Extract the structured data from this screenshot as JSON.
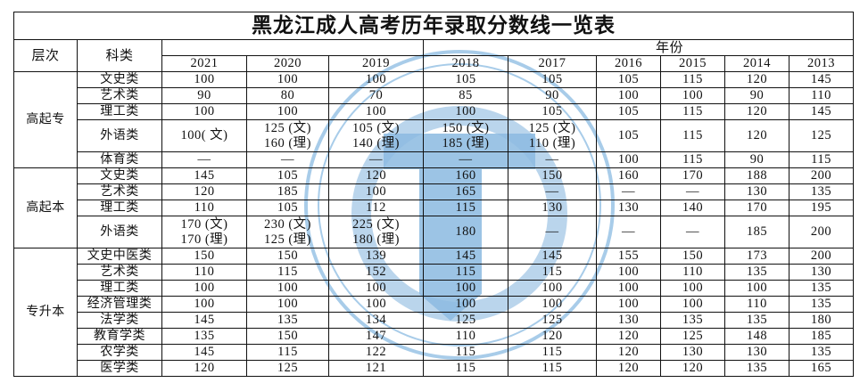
{
  "title": "黑龙江成人高考历年录取分数线一览表",
  "header": {
    "level": "层次",
    "category": "科类",
    "year_group": "年份",
    "years": [
      "2021",
      "2020",
      "2019",
      "2018",
      "2017",
      "2016",
      "2015",
      "2014",
      "2013"
    ]
  },
  "watermark_color": "#7fb2dc",
  "levels": [
    {
      "name": "高起专",
      "rows": [
        {
          "category": "文史类",
          "values": [
            "100",
            "100",
            "100",
            "105",
            "105",
            "105",
            "115",
            "120",
            "145"
          ]
        },
        {
          "category": "艺术类",
          "values": [
            "90",
            "80",
            "70",
            "85",
            "90",
            "100",
            "100",
            "90",
            "110"
          ]
        },
        {
          "category": "理工类",
          "values": [
            "100",
            "100",
            "100",
            "100",
            "105",
            "105",
            "115",
            "120",
            "145"
          ]
        },
        {
          "category": "外语类",
          "values": [
            "100( 文)",
            "125 (文)\n160 (理)",
            "105 (文)\n140 (理)",
            "150 (文)\n185 (理)",
            "125 (文)\n110 (理)",
            "105",
            "115",
            "120",
            "125"
          ]
        },
        {
          "category": "体育类",
          "values": [
            "—",
            "—",
            "—",
            "—",
            "—",
            "100",
            "115",
            "90",
            "115"
          ]
        }
      ]
    },
    {
      "name": "高起本",
      "rows": [
        {
          "category": "文史类",
          "values": [
            "145",
            "105",
            "120",
            "160",
            "150",
            "160",
            "170",
            "188",
            "200"
          ]
        },
        {
          "category": "艺术类",
          "values": [
            "120",
            "185",
            "100",
            "165",
            "—",
            "—",
            "—",
            "130",
            "135"
          ]
        },
        {
          "category": "理工类",
          "values": [
            "110",
            "105",
            "112",
            "115",
            "130",
            "130",
            "140",
            "170",
            "195"
          ]
        },
        {
          "category": "外语类",
          "values": [
            "170 (文)\n170 (理)",
            "230 (文)\n125 (理)",
            "225 (文)\n180 (理)",
            "180",
            "—",
            "—",
            "—",
            "185",
            "200"
          ]
        }
      ]
    },
    {
      "name": "专升本",
      "rows": [
        {
          "category": "文史中医类",
          "values": [
            "150",
            "150",
            "139",
            "145",
            "145",
            "155",
            "150",
            "173",
            "200"
          ]
        },
        {
          "category": "艺术类",
          "values": [
            "110",
            "115",
            "152",
            "115",
            "115",
            "100",
            "110",
            "135",
            "130"
          ]
        },
        {
          "category": "理工类",
          "values": [
            "100",
            "100",
            "100",
            "100",
            "100",
            "100",
            "100",
            "100",
            "135"
          ]
        },
        {
          "category": "经济管理类",
          "values": [
            "100",
            "100",
            "100",
            "100",
            "100",
            "100",
            "100",
            "110",
            "135"
          ]
        },
        {
          "category": "法学类",
          "values": [
            "145",
            "135",
            "134",
            "125",
            "125",
            "130",
            "135",
            "135",
            "180"
          ]
        },
        {
          "category": "教育学类",
          "values": [
            "135",
            "150",
            "147",
            "110",
            "120",
            "120",
            "125",
            "148",
            "185"
          ]
        },
        {
          "category": "农学类",
          "values": [
            "145",
            "115",
            "122",
            "115",
            "115",
            "120",
            "130",
            "130",
            "135"
          ]
        },
        {
          "category": "医学类",
          "values": [
            "120",
            "125",
            "121",
            "115",
            "115",
            "120",
            "120",
            "135",
            "165"
          ]
        }
      ]
    }
  ]
}
